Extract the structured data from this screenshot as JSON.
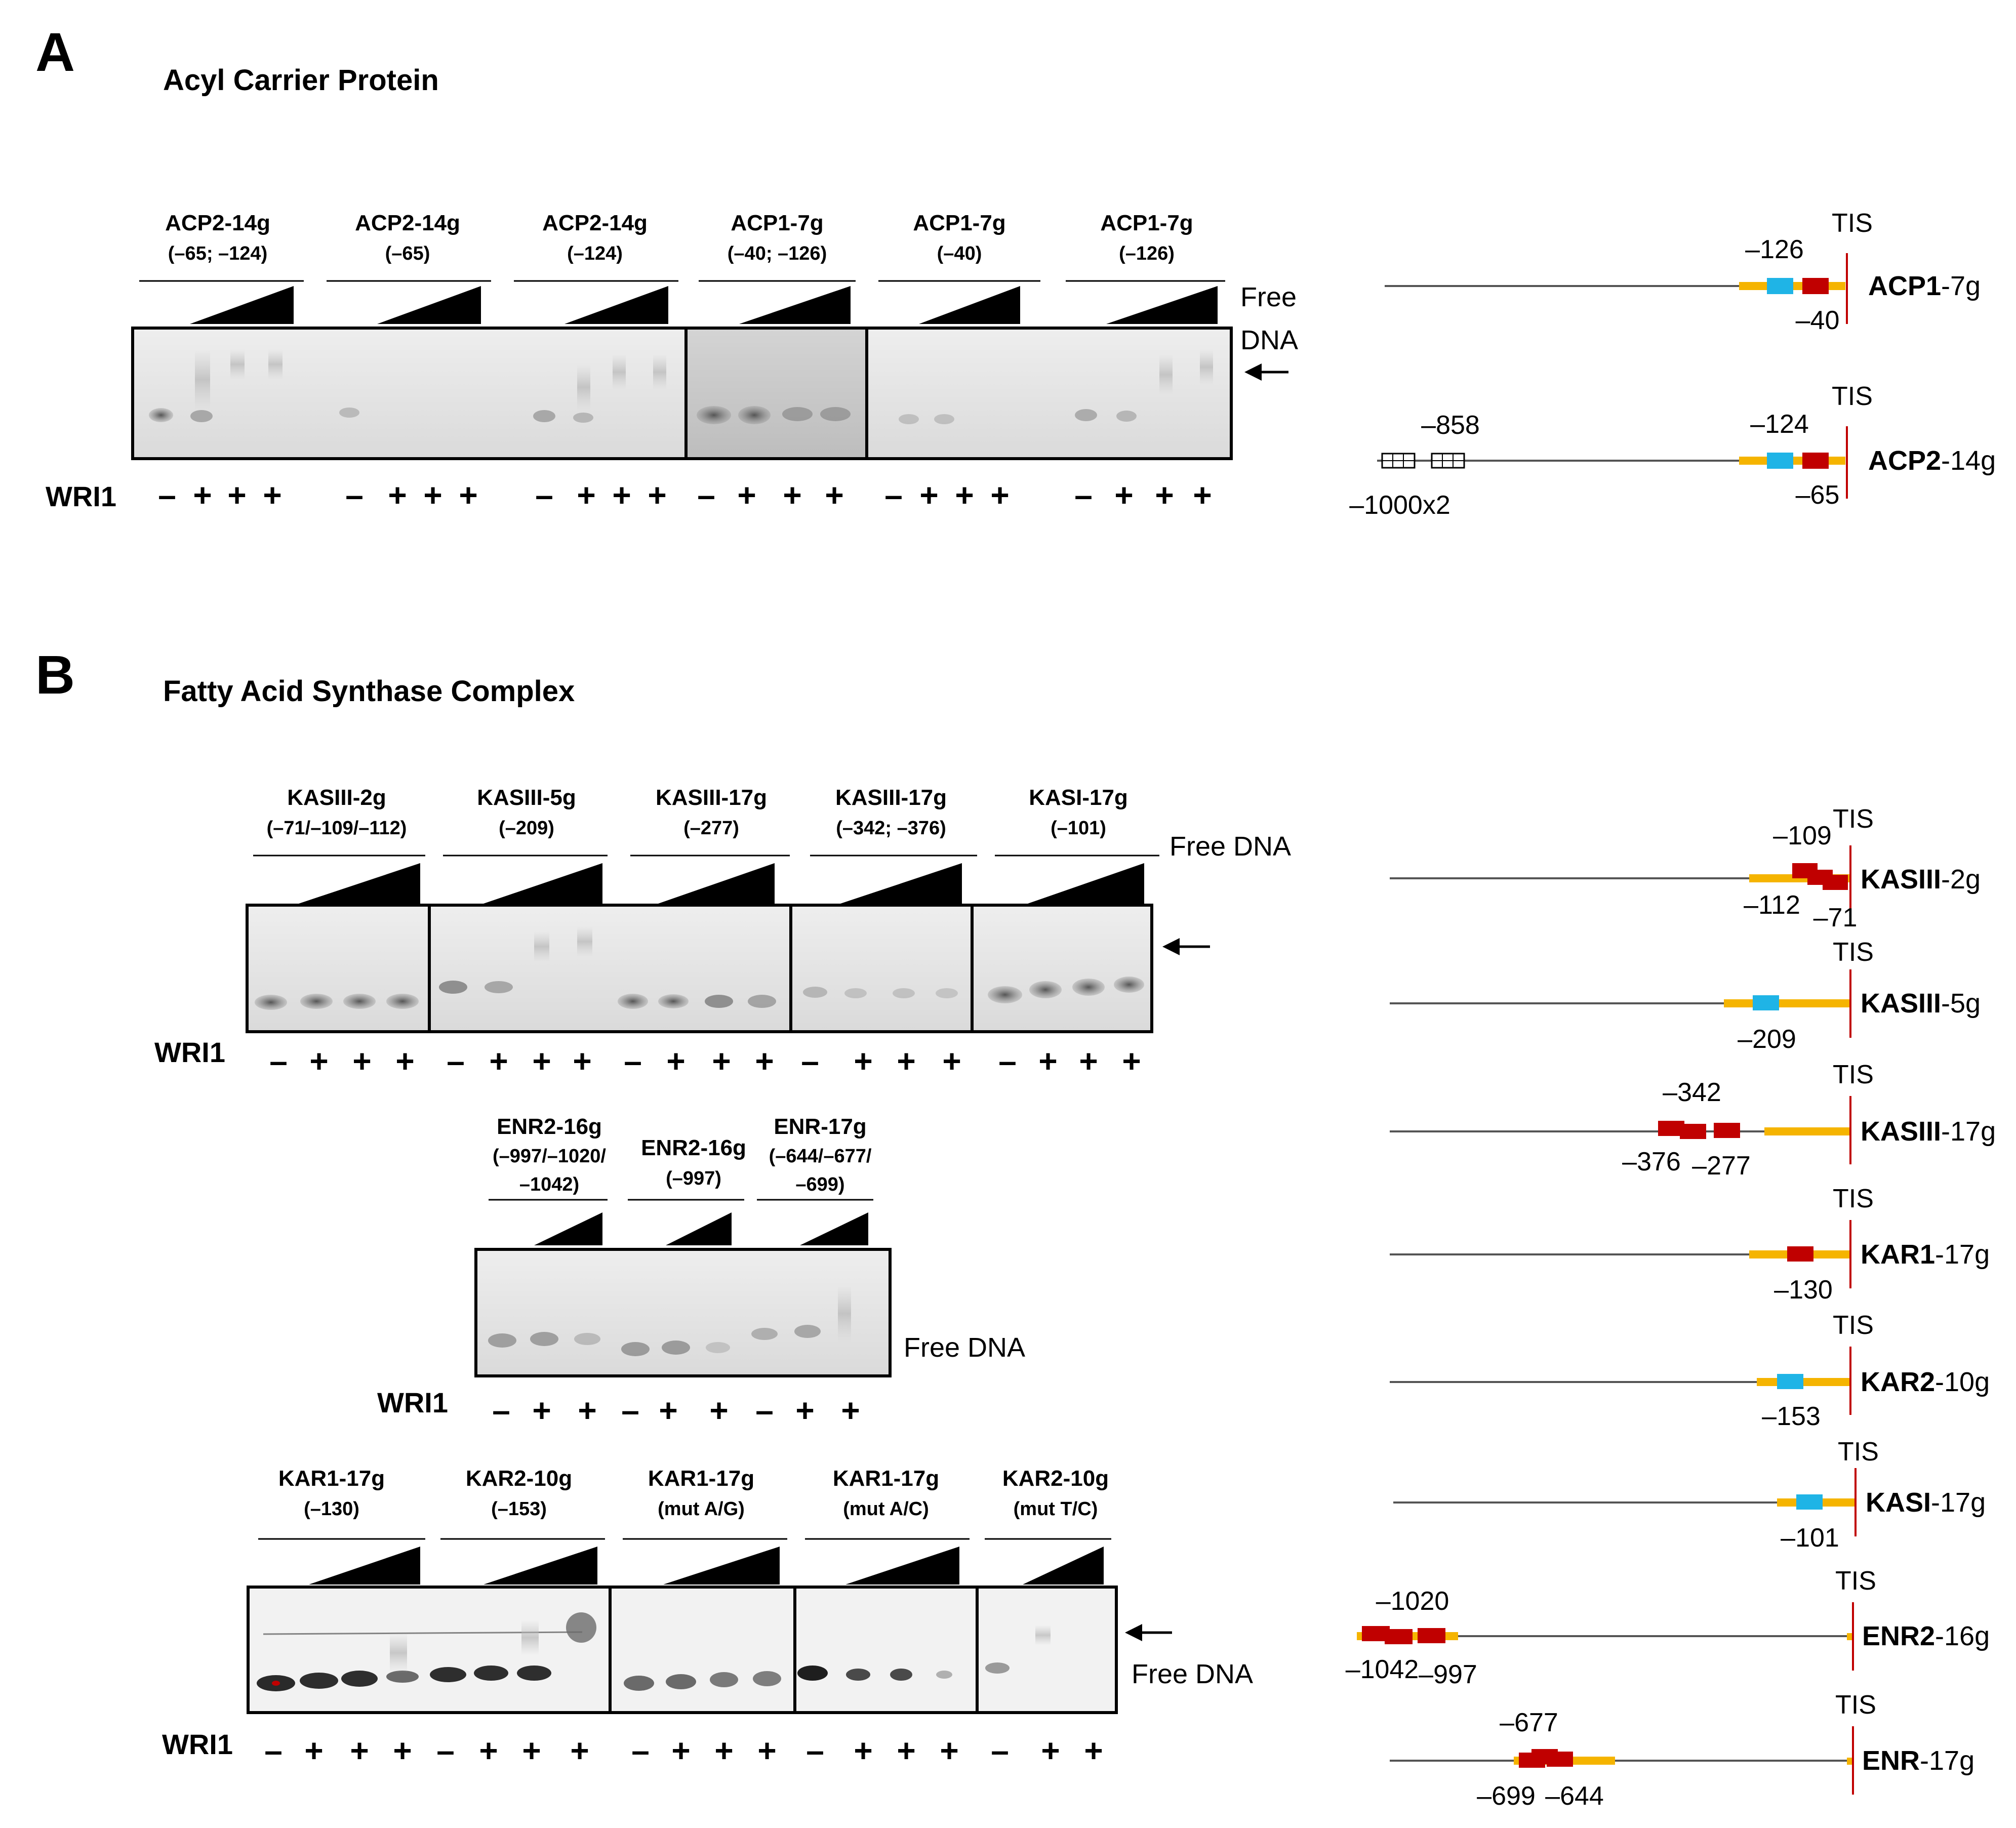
{
  "panel_a": {
    "letter": "A",
    "title": "Acyl Carrier Protein",
    "lanes": [
      {
        "name": "ACP2-14g",
        "sub": "(–65; –124)"
      },
      {
        "name": "ACP2-14g",
        "sub": "(–65)"
      },
      {
        "name": "ACP2-14g",
        "sub": "(–124)"
      },
      {
        "name": "ACP1-7g",
        "sub": "(–40; –126)"
      },
      {
        "name": "ACP1-7g",
        "sub": "(–40)"
      },
      {
        "name": "ACP1-7g",
        "sub": "(–126)"
      }
    ],
    "free_dna_line1": "Free",
    "free_dna_line2": "DNA",
    "wri_label": "WRI1",
    "signs": [
      "–",
      "+",
      "+",
      "+",
      "–",
      "+",
      "+",
      "+",
      "–",
      "+",
      "+",
      "+",
      "–",
      "+",
      "+",
      "+",
      "–",
      "+",
      "+",
      "+",
      "–",
      "+",
      "+",
      "+"
    ],
    "genes": [
      {
        "bold": "ACP1",
        "suffix": "-7g",
        "tis": "TIS",
        "labels": [
          "–126",
          "–40"
        ]
      },
      {
        "bold": "ACP2",
        "suffix": "-14g",
        "tis": "TIS",
        "labels": [
          "–858",
          "–124",
          "–65",
          "–1000x2"
        ]
      }
    ]
  },
  "panel_b": {
    "letter": "B",
    "title": "Fatty Acid Synthase Complex",
    "gel1": {
      "lanes": [
        {
          "name": "KASIII-2g",
          "sub": "(–71/–109/–112)"
        },
        {
          "name": "KASIII-5g",
          "sub": "(–209)"
        },
        {
          "name": "KASIII-17g",
          "sub": "(–277)"
        },
        {
          "name": "KASIII-17g",
          "sub": "(–342; –376)"
        },
        {
          "name": "KASI-17g",
          "sub": "(–101)"
        }
      ],
      "free_dna": "Free DNA",
      "wri_label": "WRI1",
      "signs": [
        "–",
        "+",
        "+",
        "+",
        "–",
        "+",
        "+",
        "+",
        "–",
        "+",
        "+",
        "+",
        "–",
        "+",
        "+",
        "+",
        "–",
        "+",
        "+",
        "+"
      ]
    },
    "gel2": {
      "lanes": [
        {
          "lines": [
            "ENR2-16g",
            "(–997/–1020/",
            "–1042)"
          ]
        },
        {
          "lines": [
            "ENR2-16g",
            "(–997)"
          ]
        },
        {
          "lines": [
            "ENR-17g",
            "(–644/–677/",
            "–699)"
          ]
        }
      ],
      "free_dna": "Free DNA",
      "wri_label": "WRI1",
      "signs": [
        "–",
        "+",
        "+",
        "–",
        "+",
        "+",
        "–",
        "+",
        "+"
      ]
    },
    "gel3": {
      "lanes": [
        {
          "name": "KAR1-17g",
          "sub": "(–130)"
        },
        {
          "name": "KAR2-10g",
          "sub": "(–153)"
        },
        {
          "name": "KAR1-17g",
          "sub": "(mut A/G)"
        },
        {
          "name": "KAR1-17g",
          "sub": "(mut A/C)"
        },
        {
          "name": "KAR2-10g",
          "sub": "(mut T/C)"
        }
      ],
      "free_dna": "Free DNA",
      "wri_label": "WRI1",
      "signs": [
        "–",
        "+",
        "+",
        "+",
        "–",
        "+",
        "+",
        "+",
        "–",
        "+",
        "+",
        "+",
        "–",
        "+",
        "+",
        "+",
        "–",
        "+",
        "+"
      ]
    },
    "genes": [
      {
        "bold": "KASIII",
        "suffix": "-2g",
        "tis": "TIS",
        "labels": [
          "–109",
          "–112",
          "–71"
        ]
      },
      {
        "bold": "KASIII",
        "suffix": "-5g",
        "tis": "TIS",
        "labels": [
          "–209"
        ]
      },
      {
        "bold": "KASIII",
        "suffix": "-17g",
        "tis": "TIS",
        "labels": [
          "–342",
          "–376",
          "–277"
        ]
      },
      {
        "bold": "KAR1",
        "suffix": "-17g",
        "tis": "TIS",
        "labels": [
          "–130"
        ]
      },
      {
        "bold": "KAR2",
        "suffix": "-10g",
        "tis": "TIS",
        "labels": [
          "–153"
        ]
      },
      {
        "bold": "KASI",
        "suffix": "-17g",
        "tis": "TIS",
        "labels": [
          "–101"
        ]
      },
      {
        "bold": "ENR2",
        "suffix": "-16g",
        "tis": "TIS",
        "labels": [
          "–1020",
          "–1042",
          "–997"
        ]
      },
      {
        "bold": "ENR",
        "suffix": "-17g",
        "tis": "TIS",
        "labels": [
          "–677",
          "–699",
          "–644"
        ]
      }
    ]
  },
  "colors": {
    "promoter": "#f5b400",
    "box_red": "#c00000",
    "box_blue": "#1fb4e6",
    "tis_line": "#c00000",
    "gel_bg": "#e6e6e6",
    "band": "#6e6e6e"
  }
}
